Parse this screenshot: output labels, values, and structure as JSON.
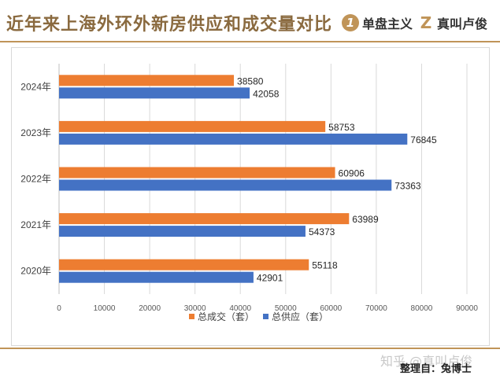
{
  "header": {
    "title": "近年来上海外环外新房供应和成交量对比",
    "brand1_glyph": "1",
    "brand1_text": "单盘主义",
    "brand2_glyph": "Z",
    "brand2_text": "真叫卢俊"
  },
  "footer": {
    "watermark": "知乎 @真叫卢俊",
    "credit": "整理自：兔博士"
  },
  "colors": {
    "accent": "#c09458",
    "title": "#8a6a3f",
    "series_orange": "#ed7d31",
    "series_blue": "#4472c4"
  },
  "chart_data": {
    "type": "bar",
    "orientation": "horizontal",
    "categories": [
      "2024年",
      "2023年",
      "2022年",
      "2021年",
      "2020年"
    ],
    "series": [
      {
        "name": "总成交（套）",
        "color": "#ed7d31",
        "values": [
          38580,
          58753,
          60906,
          63989,
          55118
        ]
      },
      {
        "name": "总供应（套）",
        "color": "#4472c4",
        "values": [
          42058,
          76845,
          73363,
          54373,
          42901
        ]
      }
    ],
    "xlim": [
      0,
      90000
    ],
    "xticks": [
      "0",
      "10000",
      "20000",
      "30000",
      "40000",
      "50000",
      "60000",
      "70000",
      "80000",
      "90000"
    ],
    "grid": true,
    "legend": "bottom",
    "data_labels": true
  }
}
